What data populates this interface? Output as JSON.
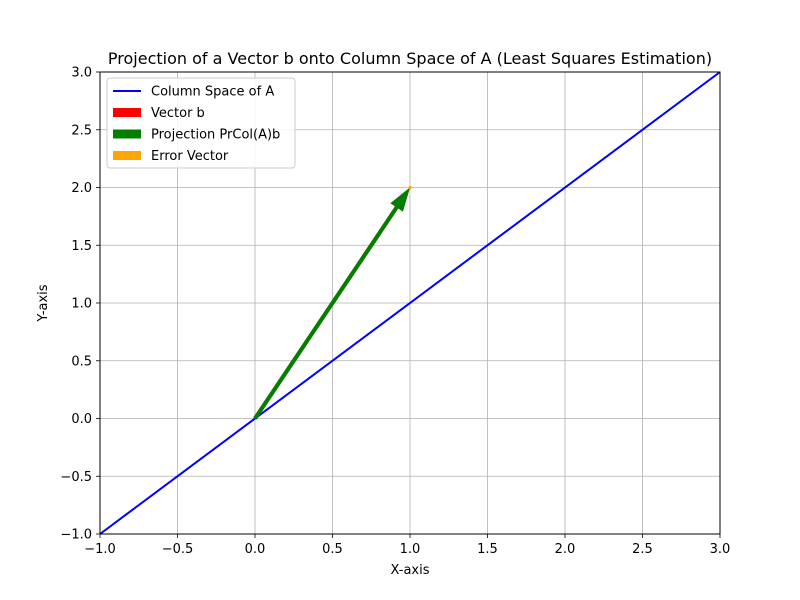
{
  "chart_data": {
    "type": "line",
    "title": "Projection of a Vector b onto Column Space of A (Least Squares Estimation)",
    "xlabel": "X-axis",
    "ylabel": "Y-axis",
    "xlim": [
      -1,
      3
    ],
    "ylim": [
      -1,
      3
    ],
    "xticks": [
      -1,
      -0.5,
      0,
      0.5,
      1,
      1.5,
      2,
      2.5,
      3
    ],
    "xtick_labels": [
      "−1.0",
      "−0.5",
      "0.0",
      "0.5",
      "1.0",
      "1.5",
      "2.0",
      "2.5",
      "3.0"
    ],
    "yticks": [
      -1,
      -0.5,
      0,
      0.5,
      1,
      1.5,
      2,
      2.5,
      3
    ],
    "ytick_labels": [
      "−1.0",
      "−0.5",
      "0.0",
      "0.5",
      "1.0",
      "1.5",
      "2.0",
      "2.5",
      "3.0"
    ],
    "grid": true,
    "legend_position": "upper-left",
    "series": [
      {
        "name": "Column Space of A",
        "kind": "line",
        "color": "#0000ff",
        "x": [
          -1,
          3
        ],
        "y": [
          -1,
          3
        ]
      },
      {
        "name": "Vector b",
        "kind": "arrow",
        "color": "#ff0000",
        "from": [
          0,
          0
        ],
        "to": [
          1,
          2
        ]
      },
      {
        "name": "Projection PrCol(A)b",
        "kind": "arrow",
        "color": "#008000",
        "from": [
          0,
          0
        ],
        "to": [
          1,
          2
        ]
      },
      {
        "name": "Error Vector",
        "kind": "arrow",
        "color": "#ffa500",
        "from": [
          1,
          2
        ],
        "to": [
          1,
          2
        ]
      }
    ]
  }
}
